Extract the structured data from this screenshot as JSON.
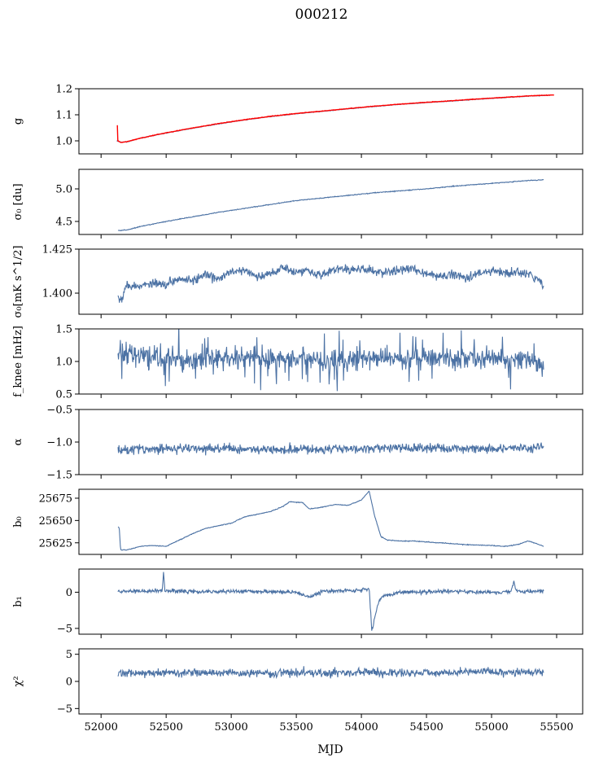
{
  "figure": {
    "title": "000212",
    "xlabel": "MJD",
    "xticks": [
      52000,
      52500,
      53000,
      53500,
      54000,
      54500,
      55000,
      55500
    ],
    "xlim": [
      51830,
      55700
    ],
    "colors": {
      "series": "#4c72a4",
      "fit": "#ff0000",
      "axes": "#000000"
    }
  },
  "chart_data": [
    {
      "type": "line",
      "id": "g",
      "ylabel": "g",
      "ylim": [
        0.95,
        1.2
      ],
      "yticks": [
        "1.0",
        "1.1",
        "1.2"
      ],
      "ytick_values": [
        1.0,
        1.1,
        1.2
      ],
      "series": [
        {
          "values": [
            [
              52120,
              1.0
            ],
            [
              52150,
              0.995
            ],
            [
              52200,
              0.996
            ],
            [
              52300,
              1.01
            ],
            [
              52500,
              1.03
            ],
            [
              52700,
              1.048
            ],
            [
              52900,
              1.065
            ],
            [
              53100,
              1.08
            ],
            [
              53300,
              1.093
            ],
            [
              53500,
              1.104
            ],
            [
              53700,
              1.113
            ],
            [
              53900,
              1.123
            ],
            [
              54100,
              1.132
            ],
            [
              54300,
              1.14
            ],
            [
              54500,
              1.147
            ],
            [
              54700,
              1.153
            ],
            [
              54900,
              1.16
            ],
            [
              55100,
              1.166
            ],
            [
              55300,
              1.172
            ],
            [
              55450,
              1.175
            ]
          ]
        },
        {
          "values": [
            [
              52125,
              1.06
            ],
            [
              52128,
              1.0
            ],
            [
              52150,
              0.994
            ],
            [
              52200,
              0.997
            ],
            [
              52300,
              1.01
            ],
            [
              52500,
              1.031
            ],
            [
              52700,
              1.049
            ],
            [
              52900,
              1.066
            ],
            [
              53100,
              1.081
            ],
            [
              53300,
              1.094
            ],
            [
              53500,
              1.105
            ],
            [
              53700,
              1.114
            ],
            [
              53900,
              1.124
            ],
            [
              54100,
              1.133
            ],
            [
              54300,
              1.141
            ],
            [
              54500,
              1.148
            ],
            [
              54700,
              1.154
            ],
            [
              54900,
              1.161
            ],
            [
              55100,
              1.167
            ],
            [
              55300,
              1.173
            ],
            [
              55480,
              1.176
            ]
          ]
        }
      ]
    },
    {
      "type": "line",
      "id": "sigma0",
      "ylabel": "σ₀ [du]",
      "ylim": [
        4.3,
        5.3
      ],
      "yticks": [
        "4.5",
        "5.0"
      ],
      "ytick_values": [
        4.5,
        5.0
      ],
      "series": [
        {
          "values": [
            [
              52130,
              4.36
            ],
            [
              52200,
              4.37
            ],
            [
              52300,
              4.42
            ],
            [
              52500,
              4.5
            ],
            [
              52700,
              4.57
            ],
            [
              52900,
              4.64
            ],
            [
              53100,
              4.7
            ],
            [
              53300,
              4.76
            ],
            [
              53500,
              4.82
            ],
            [
              53700,
              4.86
            ],
            [
              53900,
              4.9
            ],
            [
              54100,
              4.94
            ],
            [
              54300,
              4.97
            ],
            [
              54500,
              5.0
            ],
            [
              54700,
              5.04
            ],
            [
              54900,
              5.07
            ],
            [
              55100,
              5.1
            ],
            [
              55300,
              5.13
            ],
            [
              55400,
              5.14
            ]
          ]
        }
      ]
    },
    {
      "type": "line",
      "id": "sigma0-mks",
      "ylabel": "σ₀[mK s^1/2]",
      "ylim": [
        1.388,
        1.425
      ],
      "yticks": [
        "1.400",
        "1.425"
      ],
      "ytick_values": [
        1.4,
        1.425
      ],
      "series": [
        {
          "values": [
            [
              52130,
              1.398
            ],
            [
              52160,
              1.397
            ],
            [
              52200,
              1.405
            ],
            [
              52300,
              1.404
            ],
            [
              52400,
              1.406
            ],
            [
              52500,
              1.405
            ],
            [
              52600,
              1.409
            ],
            [
              52700,
              1.407
            ],
            [
              52800,
              1.41
            ],
            [
              52900,
              1.408
            ],
            [
              53000,
              1.412
            ],
            [
              53100,
              1.413
            ],
            [
              53200,
              1.409
            ],
            [
              53300,
              1.411
            ],
            [
              53400,
              1.415
            ],
            [
              53500,
              1.412
            ],
            [
              53600,
              1.413
            ],
            [
              53700,
              1.41
            ],
            [
              53800,
              1.414
            ],
            [
              53900,
              1.413
            ],
            [
              54000,
              1.414
            ],
            [
              54100,
              1.412
            ],
            [
              54200,
              1.412
            ],
            [
              54300,
              1.413
            ],
            [
              54400,
              1.414
            ],
            [
              54500,
              1.411
            ],
            [
              54600,
              1.409
            ],
            [
              54700,
              1.411
            ],
            [
              54800,
              1.409
            ],
            [
              54900,
              1.411
            ],
            [
              55000,
              1.413
            ],
            [
              55100,
              1.411
            ],
            [
              55200,
              1.412
            ],
            [
              55300,
              1.41
            ],
            [
              55350,
              1.408
            ],
            [
              55400,
              1.404
            ]
          ]
        }
      ]
    },
    {
      "type": "line",
      "id": "fknee",
      "ylabel": "f_knee [mHz]",
      "ylim": [
        0.5,
        1.5
      ],
      "yticks": [
        "0.5",
        "1.0",
        "1.5"
      ],
      "ytick_values": [
        0.5,
        1.0,
        1.5
      ],
      "series": [
        {
          "values": [
            [
              52130,
              1.15
            ],
            [
              52300,
              1.08
            ],
            [
              52500,
              1.05
            ],
            [
              52700,
              1.02
            ],
            [
              52900,
              1.04
            ],
            [
              53100,
              1.06
            ],
            [
              53300,
              1.03
            ],
            [
              53500,
              1.05
            ],
            [
              53700,
              1.04
            ],
            [
              53900,
              1.02
            ],
            [
              54100,
              1.06
            ],
            [
              54300,
              1.05
            ],
            [
              54500,
              1.07
            ],
            [
              54700,
              1.04
            ],
            [
              54900,
              1.06
            ],
            [
              55100,
              1.03
            ],
            [
              55300,
              1.02
            ],
            [
              55400,
              0.95
            ]
          ]
        }
      ]
    },
    {
      "type": "line",
      "id": "alpha",
      "ylabel": "α",
      "ylim": [
        -1.5,
        -0.5
      ],
      "yticks": [
        "−1.5",
        "−1.0",
        "−0.5"
      ],
      "ytick_values": [
        -1.5,
        -1.0,
        -0.5
      ],
      "series": [
        {
          "values": [
            [
              52130,
              -1.12
            ],
            [
              52500,
              -1.1
            ],
            [
              53000,
              -1.1
            ],
            [
              53500,
              -1.11
            ],
            [
              54000,
              -1.1
            ],
            [
              54500,
              -1.09
            ],
            [
              55000,
              -1.1
            ],
            [
              55400,
              -1.08
            ]
          ]
        }
      ]
    },
    {
      "type": "line",
      "id": "b0",
      "ylabel": "b₀",
      "ylim": [
        25612,
        25685
      ],
      "yticks": [
        "25625",
        "25650",
        "25675"
      ],
      "ytick_values": [
        25625,
        25650,
        25675
      ],
      "series": [
        {
          "values": [
            [
              52130,
              25643
            ],
            [
              52140,
              25642
            ],
            [
              52150,
              25617
            ],
            [
              52200,
              25617
            ],
            [
              52300,
              25621
            ],
            [
              52400,
              25622
            ],
            [
              52500,
              25621
            ],
            [
              52600,
              25628
            ],
            [
              52700,
              25635
            ],
            [
              52800,
              25641
            ],
            [
              52900,
              25644
            ],
            [
              53000,
              25647
            ],
            [
              53100,
              25654
            ],
            [
              53200,
              25657
            ],
            [
              53300,
              25660
            ],
            [
              53400,
              25666
            ],
            [
              53450,
              25671
            ],
            [
              53550,
              25670
            ],
            [
              53600,
              25663
            ],
            [
              53700,
              25665
            ],
            [
              53800,
              25668
            ],
            [
              53900,
              25667
            ],
            [
              54000,
              25673
            ],
            [
              54060,
              25683
            ],
            [
              54100,
              25656
            ],
            [
              54150,
              25632
            ],
            [
              54200,
              25628
            ],
            [
              54300,
              25627
            ],
            [
              54400,
              25627
            ],
            [
              54600,
              25625
            ],
            [
              54800,
              25623
            ],
            [
              55000,
              25622
            ],
            [
              55100,
              25621
            ],
            [
              55200,
              25623
            ],
            [
              55280,
              25627
            ],
            [
              55350,
              25624
            ],
            [
              55400,
              25621
            ]
          ]
        }
      ]
    },
    {
      "type": "line",
      "id": "b1",
      "ylabel": "b₁",
      "ylim": [
        -5.8,
        3.2
      ],
      "yticks": [
        "−5",
        "0"
      ],
      "ytick_values": [
        -5,
        0
      ],
      "series": [
        {
          "values": [
            [
              52130,
              0.1
            ],
            [
              52400,
              0.2
            ],
            [
              52470,
              0.2
            ],
            [
              52480,
              2.9
            ],
            [
              52490,
              0.2
            ],
            [
              52800,
              0.1
            ],
            [
              53200,
              0.1
            ],
            [
              53500,
              0.0
            ],
            [
              53600,
              -0.7
            ],
            [
              53700,
              0.1
            ],
            [
              54000,
              0.3
            ],
            [
              54060,
              0.5
            ],
            [
              54080,
              -5.4
            ],
            [
              54120,
              -2.0
            ],
            [
              54160,
              -0.5
            ],
            [
              54300,
              0.0
            ],
            [
              54700,
              0.1
            ],
            [
              55000,
              0.0
            ],
            [
              55150,
              0.1
            ],
            [
              55170,
              1.6
            ],
            [
              55190,
              0.1
            ],
            [
              55400,
              0.1
            ]
          ]
        }
      ]
    },
    {
      "type": "line",
      "id": "chi2",
      "ylabel": "χ²",
      "ylim": [
        -6,
        6
      ],
      "yticks": [
        "−5",
        "0",
        "5"
      ],
      "ytick_values": [
        -5,
        0,
        5
      ],
      "series": [
        {
          "values": [
            [
              52130,
              1.5
            ],
            [
              52500,
              1.6
            ],
            [
              53000,
              1.5
            ],
            [
              53500,
              1.6
            ],
            [
              54000,
              1.7
            ],
            [
              54500,
              1.6
            ],
            [
              55000,
              1.8
            ],
            [
              55400,
              1.7
            ]
          ]
        }
      ]
    }
  ]
}
